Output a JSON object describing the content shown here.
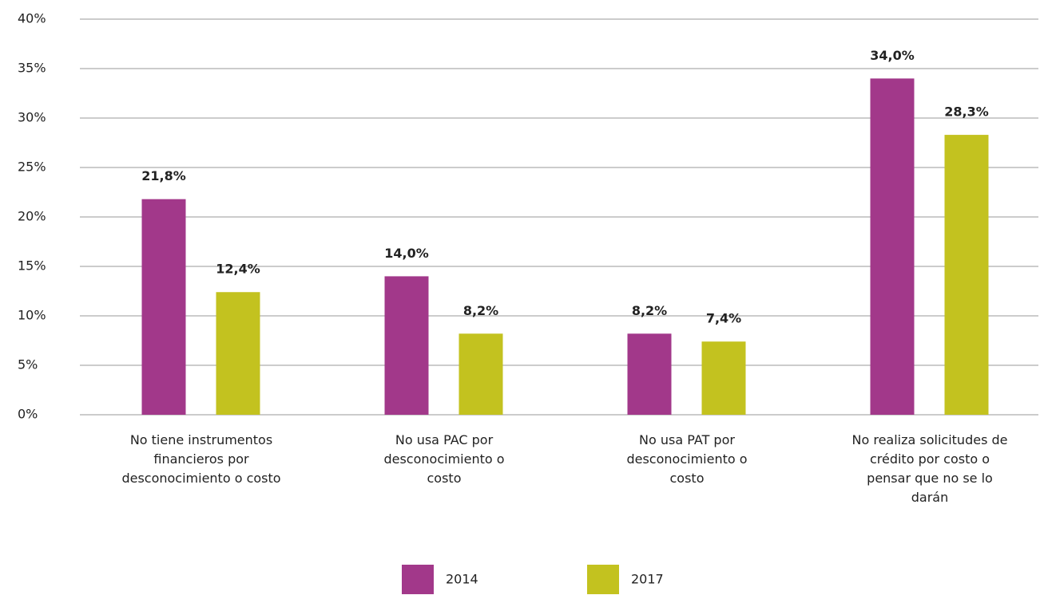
{
  "chart_data": {
    "type": "bar",
    "categories": [
      "No tiene instrumentos financieros por desconocimiento o costo",
      "No usa PAC por desconocimiento o costo",
      "No usa PAT por desconocimiento o costo",
      "No realiza solicitudes de crédito por costo o pensar que no se lo darán"
    ],
    "series": [
      {
        "name": "2014",
        "color": "#a2388a",
        "values": [
          21.8,
          14.0,
          8.2,
          34.0
        ],
        "value_labels": [
          "21,8%",
          "14,0%",
          "8,2%",
          "34,0%"
        ]
      },
      {
        "name": "2017",
        "color": "#c3c21f",
        "values": [
          12.4,
          8.2,
          7.4,
          28.3
        ],
        "value_labels": [
          "12,4%",
          "8,2%",
          "7,4%",
          "28,3%"
        ]
      }
    ],
    "ylim": [
      0,
      40
    ],
    "yticks": [
      {
        "value": 0,
        "label": "0%"
      },
      {
        "value": 5,
        "label": "5%"
      },
      {
        "value": 10,
        "label": "10%"
      },
      {
        "value": 15,
        "label": "15%"
      },
      {
        "value": 20,
        "label": "20%"
      },
      {
        "value": 25,
        "label": "25%"
      },
      {
        "value": 30,
        "label": "30%"
      },
      {
        "value": 35,
        "label": "35%"
      },
      {
        "value": 40,
        "label": "40%"
      }
    ],
    "grid": true,
    "legend": "bottom"
  }
}
